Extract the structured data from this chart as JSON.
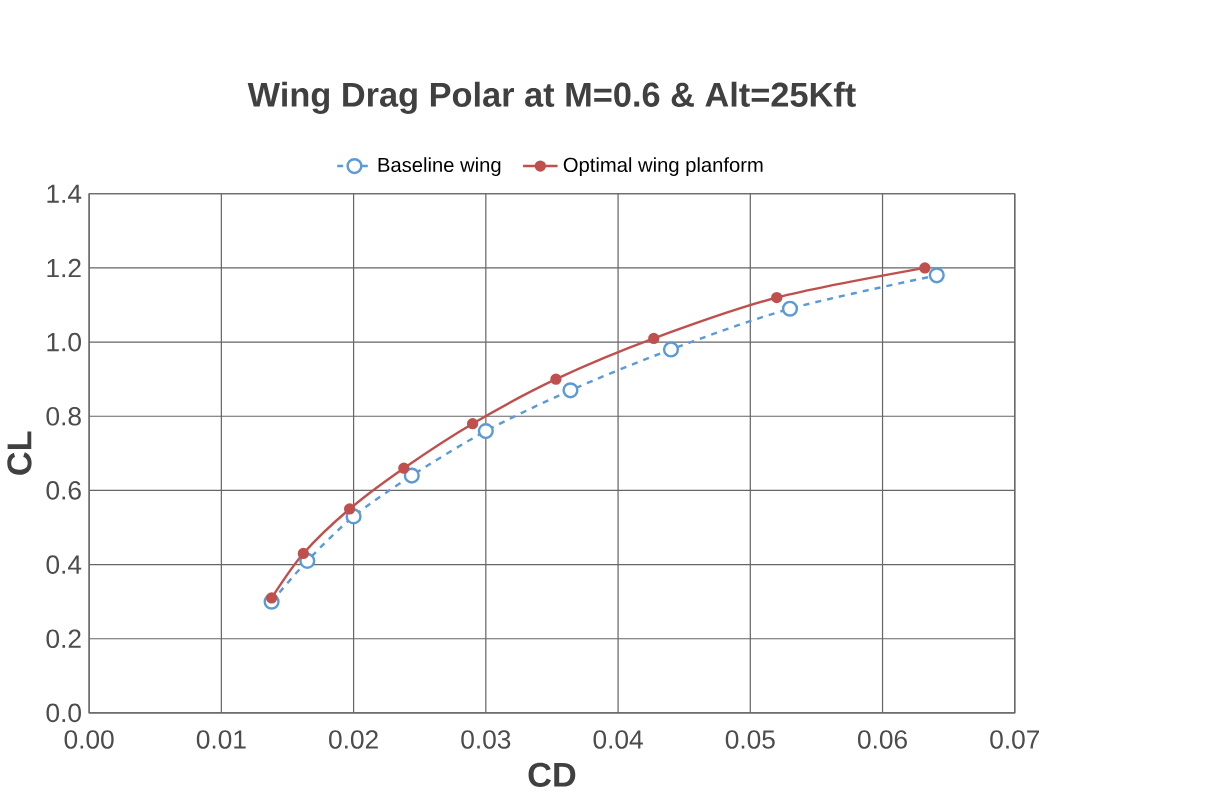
{
  "chart_data": {
    "type": "line",
    "title": "Wing Drag Polar at M=0.6 & Alt=25Kft",
    "xlabel": "CD",
    "ylabel": "CL",
    "xlim": [
      0,
      0.07
    ],
    "xticks": [
      {
        "value": 0,
        "label": "0.00"
      },
      0.01,
      0.02,
      0.03,
      0.04,
      0.05,
      0.06,
      0.07
    ],
    "ylim": [
      0,
      1.4
    ],
    "yticks": [
      {
        "value": 0,
        "label": "0.0"
      },
      0.2,
      0.4,
      0.6,
      0.8,
      {
        "value": 1,
        "label": "1.0"
      },
      1.2,
      1.4
    ],
    "grid": true,
    "legend": "top",
    "series": [
      {
        "name": "Baseline wing",
        "color": "#5b9bd5",
        "line_style": "dashed",
        "marker": "circle",
        "x": [
          0.0138,
          0.0165,
          0.02,
          0.0244,
          0.03,
          0.0364,
          0.044,
          0.053,
          0.0641
        ],
        "values": [
          0.3,
          0.41,
          0.53,
          0.64,
          0.76,
          0.87,
          0.98,
          1.09,
          1.18
        ]
      },
      {
        "name": "Optimal wing planform",
        "color": "#c0504d",
        "line_style": "solid",
        "marker": "circle",
        "x": [
          0.0138,
          0.0162,
          0.0197,
          0.0238,
          0.029,
          0.0353,
          0.0427,
          0.052,
          0.0632
        ],
        "values": [
          0.31,
          0.43,
          0.55,
          0.66,
          0.78,
          0.9,
          1.01,
          1.12,
          1.2
        ]
      }
    ]
  }
}
